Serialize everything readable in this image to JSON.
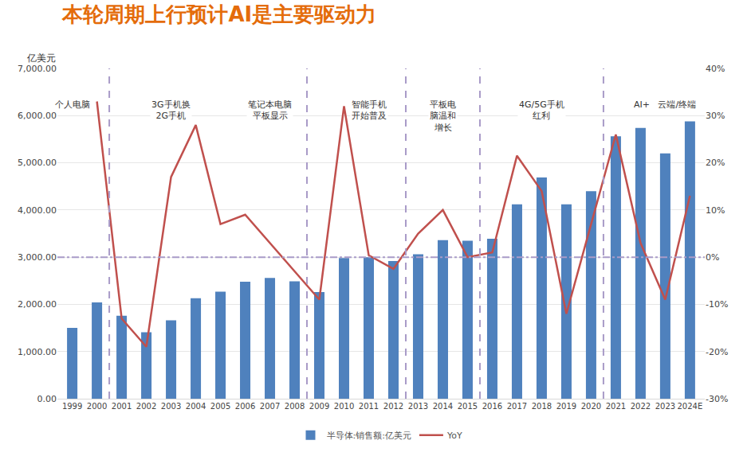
{
  "chart_data": {
    "type": "bar",
    "title": "本轮周期上行预计AI是主要驱动力",
    "ylabel": "亿美元",
    "categories": [
      "1999",
      "2000",
      "2001",
      "2002",
      "2003",
      "2004",
      "2005",
      "2006",
      "2007",
      "2008",
      "2009",
      "2010",
      "2011",
      "2012",
      "2013",
      "2014",
      "2015",
      "2016",
      "2017",
      "2018",
      "2019",
      "2020",
      "2021",
      "2022",
      "2023",
      "2024E"
    ],
    "series": [
      {
        "name": "半导体:销售额:亿美元",
        "type": "bar",
        "color": "#4f81bd",
        "values": [
          1500,
          2040,
          1760,
          1410,
          1660,
          2130,
          2270,
          2480,
          2560,
          2490,
          2260,
          2980,
          3000,
          2920,
          3060,
          3360,
          3350,
          3390,
          4120,
          4690,
          4120,
          4400,
          5560,
          5740,
          5200,
          5880
        ]
      },
      {
        "name": "YoY",
        "type": "line",
        "color": "#c0504d",
        "axis": "y2",
        "values": [
          null,
          33,
          -13,
          -19,
          17,
          28,
          7,
          9,
          3,
          -3,
          -9,
          32,
          0.4,
          -2.5,
          5,
          10,
          0,
          1,
          21.5,
          14,
          -12,
          7,
          26,
          3,
          -9,
          13
        ]
      }
    ],
    "ylim": [
      0,
      7000
    ],
    "yticks": [
      {
        "value": 0,
        "label": "0.00"
      },
      {
        "value": 1000,
        "label": "1,000.00"
      },
      {
        "value": 2000,
        "label": "2,000.00"
      },
      {
        "value": 3000,
        "label": "3,000.00"
      },
      {
        "value": 4000,
        "label": "4,000.00"
      },
      {
        "value": 5000,
        "label": "5,000.00"
      },
      {
        "value": 6000,
        "label": "6,000.00"
      },
      {
        "value": 7000,
        "label": "7,000.00"
      }
    ],
    "y2lim": [
      -30,
      40
    ],
    "y2ticks": [
      {
        "value": -30,
        "label": "-30%"
      },
      {
        "value": -20,
        "label": "-20%"
      },
      {
        "value": -10,
        "label": "-10%"
      },
      {
        "value": 0,
        "label": "0%"
      },
      {
        "value": 10,
        "label": "10%"
      },
      {
        "value": 20,
        "label": "20%"
      },
      {
        "value": 30,
        "label": "30%"
      },
      {
        "value": 40,
        "label": "40%"
      }
    ],
    "grid": true,
    "legend": "bottom",
    "annotations": [
      {
        "text": "个人电脑",
        "category": "1999"
      },
      {
        "text": "3G手机换\n2G手机",
        "category": "2003"
      },
      {
        "text": "笔记本电脑\n平板显示",
        "category": "2007"
      },
      {
        "text": "智能手机\n开始普及",
        "category": "2011"
      },
      {
        "text": "平板电\n脑温和\n增长",
        "category": "2014"
      },
      {
        "text": "4G/5G手机\n红利",
        "category": "2018"
      },
      {
        "text": "AI+   云端/终端",
        "category": "2023"
      }
    ],
    "dividers_after": [
      "2000",
      "2008",
      "2012",
      "2015",
      "2020"
    ],
    "reference_lines": [
      {
        "axis": "y2",
        "value": 0
      }
    ]
  }
}
